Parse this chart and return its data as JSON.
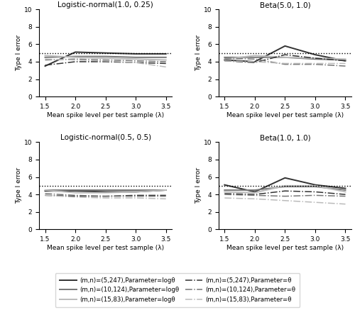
{
  "lambda_values": [
    1.5,
    2.0,
    2.5,
    3.0,
    3.5
  ],
  "subplots": [
    {
      "title": "Logistic-normal(1.0, 0.25)",
      "series": [
        {
          "color": "#333333",
          "lw": 1.4,
          "ls": "-",
          "values": [
            3.5,
            5.1,
            5.0,
            4.9,
            4.9
          ]
        },
        {
          "color": "#777777",
          "lw": 1.4,
          "ls": "-",
          "values": [
            4.5,
            4.6,
            4.6,
            4.5,
            4.5
          ]
        },
        {
          "color": "#bbbbbb",
          "lw": 1.4,
          "ls": "-",
          "values": [
            4.7,
            4.5,
            4.4,
            4.3,
            4.2
          ]
        },
        {
          "color": "#333333",
          "lw": 1.1,
          "ls": "-.",
          "values": [
            3.6,
            4.0,
            4.0,
            3.9,
            3.8
          ]
        },
        {
          "color": "#777777",
          "lw": 1.1,
          "ls": "-.",
          "values": [
            4.2,
            4.3,
            4.2,
            4.1,
            4.0
          ]
        },
        {
          "color": "#bbbbbb",
          "lw": 1.1,
          "ls": "-.",
          "values": [
            4.3,
            4.2,
            4.1,
            3.9,
            3.4
          ]
        }
      ]
    },
    {
      "title": "Beta(5.0, 1.0)",
      "series": [
        {
          "color": "#333333",
          "lw": 1.4,
          "ls": "-",
          "values": [
            4.2,
            4.0,
            5.8,
            4.8,
            4.1
          ]
        },
        {
          "color": "#777777",
          "lw": 1.4,
          "ls": "-",
          "values": [
            4.5,
            4.5,
            4.5,
            4.3,
            4.2
          ]
        },
        {
          "color": "#bbbbbb",
          "lw": 1.4,
          "ls": "-",
          "values": [
            4.3,
            4.7,
            4.5,
            4.4,
            4.3
          ]
        },
        {
          "color": "#333333",
          "lw": 1.1,
          "ls": "-.",
          "values": [
            4.1,
            3.9,
            4.8,
            4.4,
            4.1
          ]
        },
        {
          "color": "#777777",
          "lw": 1.1,
          "ls": "-.",
          "values": [
            4.4,
            4.3,
            3.7,
            3.7,
            3.5
          ]
        },
        {
          "color": "#bbbbbb",
          "lw": 1.1,
          "ls": "-.",
          "values": [
            4.1,
            4.0,
            3.8,
            3.8,
            3.8
          ]
        }
      ]
    },
    {
      "title": "Logistic-normal(0.5, 0.5)",
      "series": [
        {
          "color": "#333333",
          "lw": 1.4,
          "ls": "-",
          "values": [
            4.4,
            4.4,
            4.3,
            4.3,
            4.5
          ]
        },
        {
          "color": "#777777",
          "lw": 1.4,
          "ls": "-",
          "values": [
            4.5,
            4.5,
            4.5,
            4.5,
            4.5
          ]
        },
        {
          "color": "#bbbbbb",
          "lw": 1.4,
          "ls": "-",
          "values": [
            4.5,
            4.2,
            4.2,
            4.3,
            4.5
          ]
        },
        {
          "color": "#333333",
          "lw": 1.1,
          "ls": "-.",
          "values": [
            3.9,
            3.8,
            3.8,
            3.9,
            3.9
          ]
        },
        {
          "color": "#777777",
          "lw": 1.1,
          "ls": "-.",
          "values": [
            4.1,
            3.9,
            3.8,
            3.8,
            3.8
          ]
        },
        {
          "color": "#bbbbbb",
          "lw": 1.1,
          "ls": "-.",
          "values": [
            3.9,
            3.7,
            3.6,
            3.6,
            3.5
          ]
        }
      ]
    },
    {
      "title": "Beta(1.0, 1.0)",
      "series": [
        {
          "color": "#333333",
          "lw": 1.4,
          "ls": "-",
          "values": [
            5.1,
            4.3,
            5.9,
            5.1,
            4.7
          ]
        },
        {
          "color": "#777777",
          "lw": 1.4,
          "ls": "-",
          "values": [
            4.5,
            4.5,
            4.9,
            4.9,
            4.5
          ]
        },
        {
          "color": "#bbbbbb",
          "lw": 1.4,
          "ls": "-",
          "values": [
            4.3,
            4.2,
            5.0,
            5.0,
            4.3
          ]
        },
        {
          "color": "#333333",
          "lw": 1.1,
          "ls": "-.",
          "values": [
            4.1,
            4.0,
            4.4,
            4.3,
            4.0
          ]
        },
        {
          "color": "#777777",
          "lw": 1.1,
          "ls": "-.",
          "values": [
            4.0,
            3.9,
            3.8,
            3.9,
            3.8
          ]
        },
        {
          "color": "#bbbbbb",
          "lw": 1.1,
          "ls": "-.",
          "values": [
            3.6,
            3.5,
            3.3,
            3.1,
            2.9
          ]
        }
      ]
    }
  ],
  "hline_y": 5.0,
  "ylim": [
    0,
    10
  ],
  "yticks": [
    0,
    2,
    4,
    6,
    8,
    10
  ],
  "xlim": [
    1.4,
    3.6
  ],
  "xticks": [
    1.5,
    2.0,
    2.5,
    3.0,
    3.5
  ],
  "xlabel": "Mean spike level per test sample (λ)",
  "ylabel": "Type I error",
  "legend_entries": [
    {
      "label": "(m,n)=(5,247),Parameter=logθ",
      "color": "#333333",
      "ls": "-",
      "lw": 1.4
    },
    {
      "label": "(m,n)=(10,124),Parameter=logθ",
      "color": "#777777",
      "ls": "-",
      "lw": 1.4
    },
    {
      "label": "(m,n)=(15,83),Parameter=logθ",
      "color": "#bbbbbb",
      "ls": "-",
      "lw": 1.4
    },
    {
      "label": "(m,n)=(5,247),Parameter=θ",
      "color": "#333333",
      "ls": "-.",
      "lw": 1.1
    },
    {
      "label": "(m,n)=(10,124),Parameter=θ",
      "color": "#777777",
      "ls": "-.",
      "lw": 1.1
    },
    {
      "label": "(m,n)=(15,83),Parameter=θ",
      "color": "#bbbbbb",
      "ls": "-.",
      "lw": 1.1
    }
  ]
}
